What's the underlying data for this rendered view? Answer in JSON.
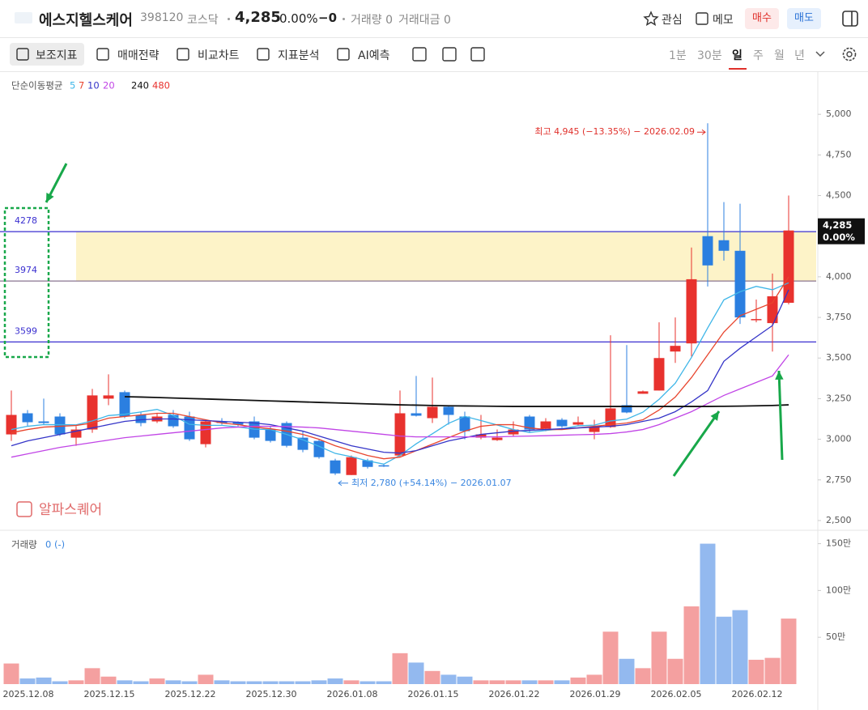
{
  "header": {
    "name": "에스지헬스케어",
    "code": "398120",
    "market": "코스닥",
    "price": "4,285",
    "change_pct": "0.00%",
    "change": "−0",
    "volume": "거래량 0",
    "amount": "거래대금 0",
    "watch": "관심",
    "memo": "메모",
    "buy": "매수",
    "sell": "매도"
  },
  "toolbar": {
    "items": [
      "보조지표",
      "매매전략",
      "비교차트",
      "지표분석",
      "AI예측"
    ],
    "periods": [
      "1분",
      "30분",
      "일",
      "주",
      "월",
      "년"
    ],
    "selected_period": 2
  },
  "watermark": "알파스퀘어",
  "chart_data": [
    {
      "type": "candlestick",
      "indicator_label": "단순이동평균",
      "categories": [
        null,
        "2025.12.08",
        null,
        null,
        null,
        null,
        "2025.12.15",
        null,
        null,
        null,
        null,
        "2025.12.22",
        null,
        null,
        null,
        null,
        "2025.12.30",
        null,
        null,
        null,
        null,
        "2026.01.08",
        null,
        null,
        null,
        null,
        "2026.01.15",
        null,
        null,
        null,
        null,
        "2026.01.22",
        null,
        null,
        null,
        null,
        "2026.01.29",
        null,
        null,
        null,
        null,
        "2026.02.05",
        null,
        null,
        null,
        null,
        "2026.02.12",
        null,
        null
      ],
      "open": [
        3030,
        3160,
        3110,
        3140,
        3010,
        3060,
        3250,
        3290,
        3150,
        3110,
        3150,
        3140,
        2970,
        3110,
        3105,
        3110,
        3060,
        3100,
        3010,
        2990,
        2870,
        2780,
        2870,
        2840,
        2900,
        3160,
        3130,
        3200,
        3140,
        3010,
        2995,
        3030,
        3140,
        3065,
        3120,
        3090,
        3045,
        3075,
        3210,
        3280,
        3300,
        3540,
        3590,
        4250,
        4225,
        4160,
        3740,
        3715,
        3840
      ],
      "high": [
        3300,
        3180,
        3250,
        3160,
        3080,
        3310,
        3400,
        3300,
        3170,
        3160,
        3180,
        3170,
        3120,
        3130,
        3110,
        3140,
        3080,
        3110,
        3050,
        3000,
        2880,
        2900,
        2880,
        2850,
        3300,
        3390,
        3380,
        3210,
        3170,
        3150,
        3060,
        3110,
        3150,
        3130,
        3130,
        3140,
        3120,
        3640,
        3580,
        3300,
        3720,
        3750,
        4180,
        4945,
        4460,
        4450,
        3860,
        4020,
        4500
      ],
      "low": [
        2990,
        3080,
        3090,
        3020,
        2960,
        3040,
        3210,
        3130,
        3080,
        3100,
        3070,
        2990,
        2950,
        3090,
        3080,
        3000,
        2980,
        2950,
        2920,
        2880,
        2780,
        2780,
        2820,
        2830,
        2890,
        3140,
        3100,
        3090,
        3000,
        3000,
        2990,
        3020,
        3040,
        3050,
        3070,
        3080,
        3000,
        3070,
        3160,
        3280,
        3300,
        3470,
        3510,
        3940,
        4100,
        3710,
        3720,
        3540,
        3830
      ],
      "close": [
        3150,
        3105,
        3100,
        3030,
        3060,
        3270,
        3270,
        3140,
        3100,
        3140,
        3080,
        3000,
        3110,
        3100,
        3090,
        3010,
        2990,
        2960,
        2935,
        2890,
        2790,
        2890,
        2830,
        2835,
        3160,
        3145,
        3200,
        3150,
        3050,
        3030,
        3010,
        3060,
        3060,
        3110,
        3080,
        3105,
        3080,
        3190,
        3165,
        3295,
        3500,
        3575,
        3985,
        4070,
        4160,
        3750,
        3740,
        3880,
        4285
      ],
      "up_color": "#e8322e",
      "down_color": "#2b7fe0",
      "series": [
        {
          "name": "5",
          "color": "#3fb6e8",
          "values": [
            3060,
            3080,
            3090,
            3090,
            3089,
            3113,
            3146,
            3154,
            3168,
            3184,
            3146,
            3092,
            3086,
            3086,
            3076,
            3062,
            3060,
            3030,
            2997,
            2957,
            2913,
            2893,
            2867,
            2847,
            2901,
            2972,
            3034,
            3098,
            3141,
            3115,
            3088,
            3060,
            3042,
            3054,
            3064,
            3083,
            3087,
            3113,
            3124,
            3167,
            3246,
            3345,
            3504,
            3685,
            3858,
            3908,
            3941,
            3920,
            3963
          ]
        },
        {
          "name": "7",
          "color": "#e8452e",
          "values": [
            3040,
            3060,
            3075,
            3080,
            3085,
            3100,
            3130,
            3140,
            3150,
            3160,
            3160,
            3140,
            3120,
            3100,
            3090,
            3075,
            3065,
            3050,
            3030,
            3000,
            2960,
            2930,
            2900,
            2880,
            2890,
            2930,
            2970,
            3010,
            3050,
            3080,
            3090,
            3090,
            3070,
            3060,
            3060,
            3070,
            3080,
            3090,
            3100,
            3120,
            3180,
            3260,
            3380,
            3520,
            3660,
            3760,
            3800,
            3840,
            4000
          ]
        },
        {
          "name": "10",
          "color": "#3535c8",
          "values": [
            2960,
            2990,
            3010,
            3030,
            3050,
            3070,
            3090,
            3110,
            3120,
            3125,
            3125,
            3120,
            3115,
            3110,
            3105,
            3100,
            3090,
            3070,
            3050,
            3020,
            2990,
            2960,
            2940,
            2920,
            2915,
            2930,
            2960,
            2990,
            3010,
            3030,
            3040,
            3050,
            3055,
            3060,
            3065,
            3070,
            3075,
            3080,
            3090,
            3110,
            3130,
            3170,
            3230,
            3300,
            3480,
            3560,
            3630,
            3700,
            3920
          ]
        },
        {
          "name": "20",
          "color": "#c145e6",
          "values": [
            2890,
            2910,
            2930,
            2950,
            2965,
            2980,
            2995,
            3010,
            3020,
            3030,
            3040,
            3050,
            3060,
            3070,
            3075,
            3080,
            3080,
            3078,
            3075,
            3070,
            3060,
            3050,
            3040,
            3030,
            3020,
            3015,
            3015,
            3015,
            3015,
            3015,
            3015,
            3018,
            3020,
            3022,
            3025,
            3028,
            3030,
            3035,
            3045,
            3060,
            3090,
            3130,
            3170,
            3220,
            3270,
            3310,
            3350,
            3390,
            3520
          ]
        },
        {
          "name": "240",
          "color": "#111111",
          "values": [
            null,
            null,
            null,
            null,
            null,
            null,
            null,
            3262,
            3260,
            3257,
            3254,
            3251,
            3248,
            3245,
            3242,
            3239,
            3236,
            3233,
            3230,
            3227,
            3224,
            3221,
            3218,
            3215,
            3212,
            3210,
            3208,
            3206,
            3205,
            3204,
            3203,
            3202,
            3202,
            3202,
            3202,
            3202,
            3202,
            3202,
            3202,
            3202,
            3202,
            3202,
            3202,
            3202,
            3203,
            3204,
            3206,
            3208,
            3212
          ]
        },
        {
          "name": "480",
          "color": "#e8322e",
          "values": [
            null,
            null,
            null,
            null,
            null,
            null,
            null,
            null,
            null,
            null,
            null,
            null,
            null,
            null,
            null,
            null,
            null,
            null,
            null,
            null,
            null,
            null,
            null,
            null,
            null,
            null,
            null,
            null,
            null,
            null,
            null,
            null,
            null,
            null,
            null,
            null,
            null,
            null,
            null,
            null,
            null,
            null,
            null,
            null,
            null,
            null,
            null,
            null,
            null
          ]
        }
      ],
      "levels": [
        4278,
        3974,
        3599
      ],
      "high_note": "최고 4,945 (−13.35%) − 2026.02.09",
      "low_note": "최저 2,780 (+54.14%) − 2026.01.07",
      "last_price": {
        "value": 4285,
        "label": "4,285"
      },
      "last_change": "0.00%",
      "ylim": [
        2440,
        5255
      ],
      "yticks": [
        {
          "value": 2500,
          "label": "2,500"
        },
        {
          "value": 2750,
          "label": "2,750"
        },
        {
          "value": 3000,
          "label": "3,000"
        },
        {
          "value": 3250,
          "label": "3,250"
        },
        {
          "value": 3500,
          "label": "3,500"
        },
        {
          "value": 3750,
          "label": "3,750"
        },
        {
          "value": 4000,
          "label": "4,000"
        },
        {
          "value": 4250,
          "label": "4,250"
        },
        {
          "value": 4500,
          "label": "4,500"
        },
        {
          "value": 4750,
          "label": "4,750"
        },
        {
          "value": 5000,
          "label": "5,000"
        }
      ],
      "grid": false
    },
    {
      "type": "bar",
      "title": "거래량",
      "legend_value": "0 (-)",
      "values": [
        22,
        6,
        7,
        3,
        4,
        17,
        8,
        4,
        3,
        6,
        4,
        3,
        10,
        4,
        3,
        3,
        3,
        3,
        3,
        4,
        6,
        4,
        3,
        3,
        33,
        23,
        14,
        10,
        8,
        4,
        4,
        4,
        4,
        4,
        4,
        7,
        10,
        56,
        27,
        17,
        56,
        27,
        83,
        150,
        72,
        79,
        26,
        28,
        70
      ],
      "up_color": "#f4a0a0",
      "down_color": "#93b9ef",
      "ylim": [
        0,
        160
      ],
      "yticks": [
        {
          "value": 50,
          "label": "50만"
        },
        {
          "value": 100,
          "label": "100만"
        },
        {
          "value": 150,
          "label": "150만"
        }
      ],
      "grid": false
    }
  ]
}
